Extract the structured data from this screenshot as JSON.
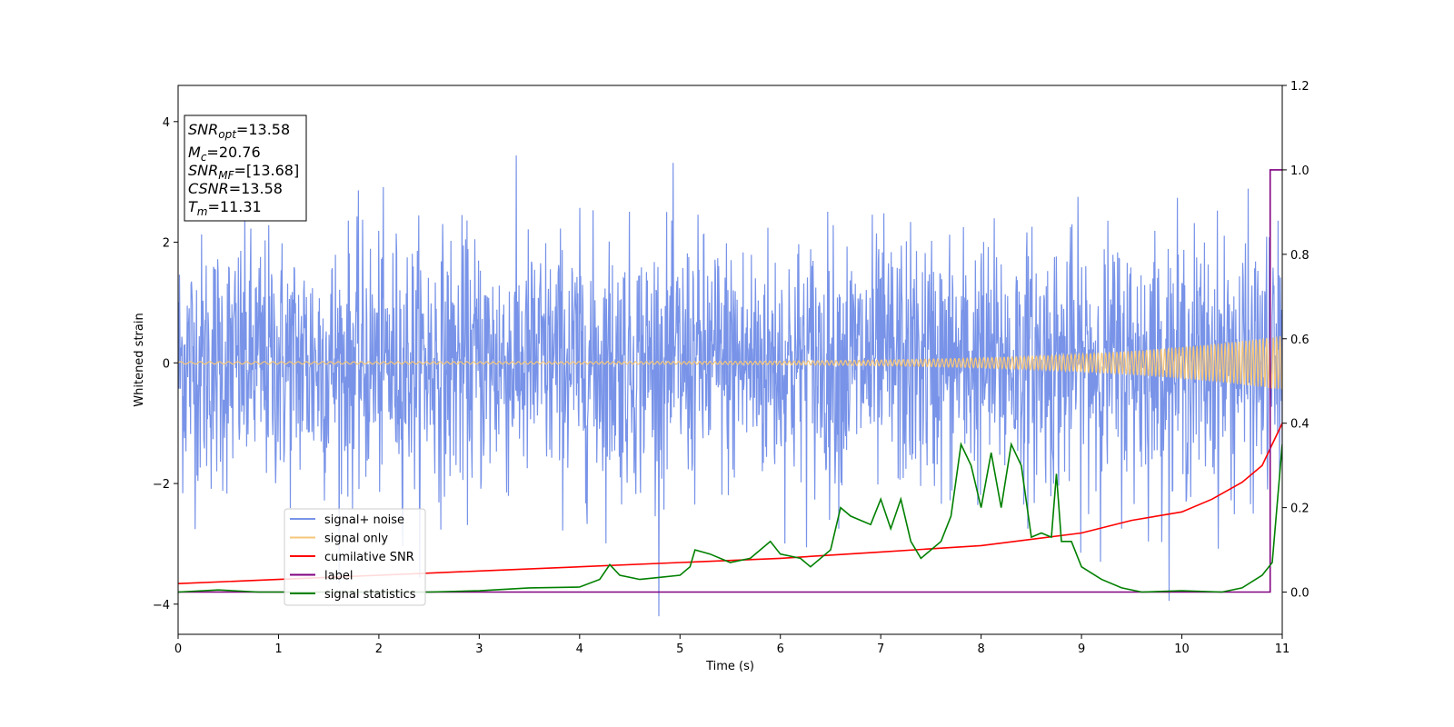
{
  "chart_data": {
    "type": "line",
    "xlabel": "Time (s)",
    "ylabel": "Whitened strain",
    "xlim": [
      0,
      11
    ],
    "ylim": [
      -4.5,
      4.6
    ],
    "y2lim": [
      -0.1,
      1.2
    ],
    "x_ticks": [
      "0",
      "1",
      "2",
      "3",
      "4",
      "5",
      "6",
      "7",
      "8",
      "9",
      "10",
      "11"
    ],
    "y_ticks": [
      "−4",
      "−2",
      "0",
      "2",
      "4"
    ],
    "y2_ticks": [
      "0.0",
      "0.2",
      "0.4",
      "0.6",
      "0.8",
      "1.0",
      "1.2"
    ],
    "grid": false,
    "legend_position": "lower-left",
    "info_box": {
      "snr_opt": {
        "main": "SNR",
        "sub": "opt",
        "value": "=13.58"
      },
      "mc": {
        "main": "M",
        "sub": "c",
        "value": "=20.76"
      },
      "snr_mf": {
        "main": "SNR",
        "sub": "MF",
        "value": "=[13.68]"
      },
      "csnr": {
        "main": "CSNR",
        "value": "=13.58"
      },
      "tm": {
        "main": "T",
        "sub": "m",
        "value": "=11.31"
      }
    },
    "series": [
      {
        "name": "signal+ noise",
        "color": "#7893e8",
        "axis": "left",
        "noise_std": 1.0,
        "t_start": 0,
        "t_end": 11
      },
      {
        "name": "signal only",
        "color": "#f5c67a",
        "axis": "left",
        "amplitude_start": 0.02,
        "amplitude_end": 0.45,
        "t_start": 0,
        "t_end": 11
      },
      {
        "name": "cumilative SNR",
        "color": "#ff0000",
        "axis": "right",
        "x": [
          0,
          1,
          2,
          3,
          4,
          5,
          6,
          7,
          8,
          9,
          9.5,
          10,
          10.3,
          10.6,
          10.8,
          11
        ],
        "y": [
          0.02,
          0.03,
          0.04,
          0.05,
          0.06,
          0.07,
          0.08,
          0.095,
          0.11,
          0.14,
          0.17,
          0.19,
          0.22,
          0.26,
          0.3,
          0.4
        ]
      },
      {
        "name": "label",
        "color": "#800080",
        "axis": "right",
        "x": [
          0,
          10.88,
          10.88,
          11
        ],
        "y": [
          0,
          0,
          1.0,
          1.0
        ]
      },
      {
        "name": "signal statistics",
        "color": "#008000",
        "axis": "right",
        "x": [
          0,
          0.4,
          0.8,
          1.5,
          2.5,
          3.0,
          3.5,
          4.0,
          4.2,
          4.3,
          4.4,
          4.6,
          4.8,
          5.0,
          5.1,
          5.15,
          5.3,
          5.5,
          5.7,
          5.9,
          6.0,
          6.2,
          6.3,
          6.5,
          6.6,
          6.7,
          6.8,
          6.9,
          7.0,
          7.1,
          7.2,
          7.3,
          7.4,
          7.6,
          7.7,
          7.8,
          7.9,
          8.0,
          8.1,
          8.2,
          8.3,
          8.4,
          8.5,
          8.6,
          8.7,
          8.75,
          8.8,
          8.9,
          9.0,
          9.2,
          9.4,
          9.6,
          10.0,
          10.4,
          10.6,
          10.8,
          10.9,
          11.0
        ],
        "y": [
          0.0,
          0.005,
          0.0,
          0.0,
          0.0,
          0.003,
          0.01,
          0.012,
          0.03,
          0.065,
          0.04,
          0.03,
          0.035,
          0.04,
          0.06,
          0.1,
          0.09,
          0.07,
          0.08,
          0.12,
          0.09,
          0.08,
          0.06,
          0.1,
          0.2,
          0.18,
          0.17,
          0.16,
          0.22,
          0.15,
          0.22,
          0.12,
          0.08,
          0.12,
          0.18,
          0.35,
          0.3,
          0.2,
          0.33,
          0.2,
          0.35,
          0.3,
          0.13,
          0.14,
          0.13,
          0.28,
          0.12,
          0.12,
          0.06,
          0.03,
          0.01,
          0.0,
          0.003,
          0.0,
          0.01,
          0.04,
          0.07,
          0.35
        ]
      }
    ]
  }
}
